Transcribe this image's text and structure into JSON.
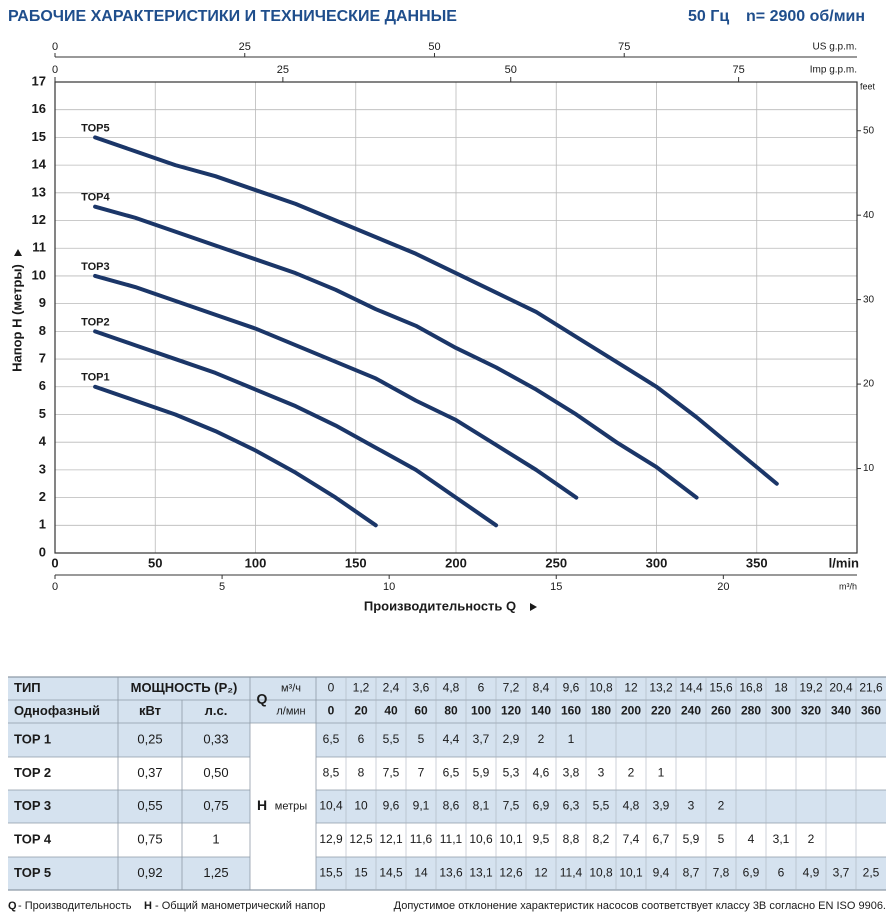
{
  "header": {
    "title": "РАБОЧИЕ ХАРАКТЕРИСТИКИ И ТЕХНИЧЕСКИЕ ДАННЫЕ",
    "frequency": "50 Гц",
    "speed": "n= 2900 об/мин"
  },
  "chart_data": {
    "type": "line",
    "ylabel": "Напор H (метры)",
    "xlabel": "Производительность Q",
    "xunit": "l/min",
    "xlim": [
      0,
      400
    ],
    "xticks": [
      0,
      50,
      100,
      150,
      200,
      250,
      300,
      350
    ],
    "ylim": [
      0,
      17
    ],
    "yticks": [
      0,
      1,
      2,
      3,
      4,
      5,
      6,
      7,
      8,
      9,
      10,
      11,
      12,
      13,
      14,
      15,
      16,
      17
    ],
    "y2label": "feet",
    "y2lim": [
      0,
      55.77
    ],
    "y2ticks": [
      10,
      20,
      30,
      40,
      50
    ],
    "x2label": "US g.p.m.",
    "x2lim": [
      0,
      105.67
    ],
    "x2ticks": [
      0,
      25,
      50,
      75
    ],
    "x3label": "Imp g.p.m.",
    "x3lim": [
      0,
      87.99
    ],
    "x3ticks": [
      0,
      25,
      50,
      75
    ],
    "x4label": "m³/h",
    "x4lim": [
      0,
      24
    ],
    "x4ticks": [
      0,
      5,
      10,
      15,
      20
    ],
    "grid": true,
    "color": "#1b3668",
    "series": [
      {
        "name": "TOP1",
        "x": [
          20,
          40,
          60,
          80,
          100,
          120,
          140,
          160
        ],
        "values": [
          6,
          5.5,
          5,
          4.4,
          3.7,
          2.9,
          2,
          1
        ]
      },
      {
        "name": "TOP2",
        "x": [
          20,
          40,
          60,
          80,
          100,
          120,
          140,
          160,
          180,
          200,
          220
        ],
        "values": [
          8,
          7.5,
          7,
          6.5,
          5.9,
          5.3,
          4.6,
          3.8,
          3,
          2,
          1
        ]
      },
      {
        "name": "TOP3",
        "x": [
          20,
          40,
          60,
          80,
          100,
          120,
          140,
          160,
          180,
          200,
          220,
          240,
          260
        ],
        "values": [
          10,
          9.6,
          9.1,
          8.6,
          8.1,
          7.5,
          6.9,
          6.3,
          5.5,
          4.8,
          3.9,
          3,
          2
        ]
      },
      {
        "name": "TOP4",
        "x": [
          20,
          40,
          60,
          80,
          100,
          120,
          140,
          160,
          180,
          200,
          220,
          240,
          260,
          280,
          300,
          320
        ],
        "values": [
          12.5,
          12.1,
          11.6,
          11.1,
          10.6,
          10.1,
          9.5,
          8.8,
          8.2,
          7.4,
          6.7,
          5.9,
          5,
          4,
          3.1,
          2
        ]
      },
      {
        "name": "TOP5",
        "x": [
          20,
          40,
          60,
          80,
          100,
          120,
          140,
          160,
          180,
          200,
          220,
          240,
          260,
          280,
          300,
          320,
          340,
          360
        ],
        "values": [
          15,
          14.5,
          14,
          13.6,
          13.1,
          12.6,
          12,
          11.4,
          10.8,
          10.1,
          9.4,
          8.7,
          7.8,
          6.9,
          6,
          4.9,
          3.7,
          2.5
        ]
      }
    ]
  },
  "table": {
    "type_label": "ТИП",
    "power_label": "МОЩНОСТЬ (P₂)",
    "phase_label": "Однофазный",
    "kw_label": "кВт",
    "hp_label": "л.с.",
    "q_label": "Q",
    "q_unit_m3h": "м³/ч",
    "q_unit_lmin": "л/мин",
    "h_label": "H",
    "h_unit": "метры",
    "q_m3h": [
      "0",
      "1,2",
      "2,4",
      "3,6",
      "4,8",
      "6",
      "7,2",
      "8,4",
      "9,6",
      "10,8",
      "12",
      "13,2",
      "14,4",
      "15,6",
      "16,8",
      "18",
      "19,2",
      "20,4",
      "21,6"
    ],
    "q_lmin": [
      "0",
      "20",
      "40",
      "60",
      "80",
      "100",
      "120",
      "140",
      "160",
      "180",
      "200",
      "220",
      "240",
      "260",
      "280",
      "300",
      "320",
      "340",
      "360"
    ],
    "rows": [
      {
        "name": "TOP 1",
        "kw": "0,25",
        "hp": "0,33",
        "h": [
          "6,5",
          "6",
          "5,5",
          "5",
          "4,4",
          "3,7",
          "2,9",
          "2",
          "1"
        ]
      },
      {
        "name": "TOP 2",
        "kw": "0,37",
        "hp": "0,50",
        "h": [
          "8,5",
          "8",
          "7,5",
          "7",
          "6,5",
          "5,9",
          "5,3",
          "4,6",
          "3,8",
          "3",
          "2",
          "1"
        ]
      },
      {
        "name": "TOP 3",
        "kw": "0,55",
        "hp": "0,75",
        "h": [
          "10,4",
          "10",
          "9,6",
          "9,1",
          "8,6",
          "8,1",
          "7,5",
          "6,9",
          "6,3",
          "5,5",
          "4,8",
          "3,9",
          "3",
          "2"
        ]
      },
      {
        "name": "TOP 4",
        "kw": "0,75",
        "hp": "1",
        "h": [
          "12,9",
          "12,5",
          "12,1",
          "11,6",
          "11,1",
          "10,6",
          "10,1",
          "9,5",
          "8,8",
          "8,2",
          "7,4",
          "6,7",
          "5,9",
          "5",
          "4",
          "3,1",
          "2"
        ]
      },
      {
        "name": "TOP 5",
        "kw": "0,92",
        "hp": "1,25",
        "h": [
          "15,5",
          "15",
          "14,5",
          "14",
          "13,6",
          "13,1",
          "12,6",
          "12",
          "11,4",
          "10,8",
          "10,1",
          "9,4",
          "8,7",
          "7,8",
          "6,9",
          "6",
          "4,9",
          "3,7",
          "2,5"
        ]
      }
    ]
  },
  "footer": {
    "q": "Q",
    "q_text": "- Производительность",
    "h": "H",
    "h_text": "- Общий манометрический напор",
    "note": "Допустимое отклонение характеристик насосов соответствует классу 3B согласно EN ISO 9906."
  }
}
